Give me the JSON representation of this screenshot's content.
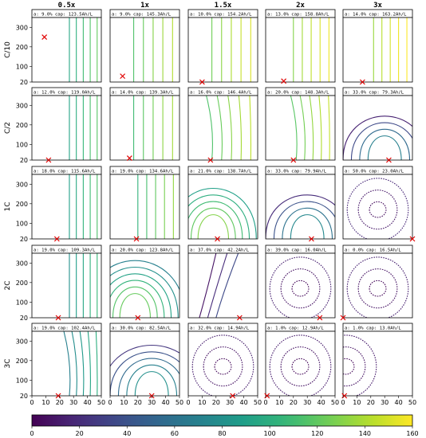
{
  "chart_data": {
    "type": "contour_grid",
    "col_titles": [
      "0.5x",
      "1x",
      "1.5x",
      "2x",
      "3x"
    ],
    "row_labels": [
      "C/10",
      "C/2",
      "1C",
      "2C",
      "3C"
    ],
    "x_ticks": [
      "0",
      "10",
      "20",
      "30",
      "40",
      "50"
    ],
    "x_range": [
      0,
      50
    ],
    "y_ticks": [
      "20",
      "100",
      "200",
      "300"
    ],
    "y_range": [
      20,
      350
    ],
    "colorbar": {
      "ticks": [
        "0",
        "20",
        "40",
        "60",
        "80",
        "100",
        "120",
        "140",
        "160"
      ],
      "range": [
        0,
        160
      ],
      "colormap": "viridis"
    },
    "panels": [
      [
        {
          "label": "a: 9.0%   cap: 123.5Ah/L",
          "optimum": [
            9,
            250
          ],
          "pattern": "vertical",
          "values": [
            95,
            102,
            110,
            116,
            121
          ],
          "x_start": 25
        },
        {
          "label": "a: 9.0%   cap: 145.3Ah/L",
          "optimum": [
            9,
            50
          ],
          "pattern": "vertical",
          "values": [
            115,
            122,
            130,
            136,
            141
          ],
          "x_start": 15
        },
        {
          "label": "a: 10.0%   cap: 154.2Ah/L",
          "optimum": [
            10,
            20
          ],
          "pattern": "vertical",
          "values": [
            125,
            132,
            140,
            147,
            151
          ],
          "x_start": 15
        },
        {
          "label": "a: 13.0%   cap: 158.8Ah/L",
          "optimum": [
            13,
            25
          ],
          "pattern": "vertical",
          "values": [
            130,
            138,
            145,
            151,
            156
          ],
          "x_start": 18
        },
        {
          "label": "a: 14.0%   cap: 163.2Ah/L",
          "optimum": [
            14,
            20
          ],
          "pattern": "vertical",
          "values": [
            135,
            143,
            150,
            156,
            161
          ],
          "x_start": 20
        }
      ],
      [
        {
          "label": "a: 12.0%   cap: 119.0Ah/L",
          "optimum": [
            12,
            20
          ],
          "pattern": "vertical",
          "values": [
            92,
            100,
            107,
            113,
            117
          ],
          "x_start": 25
        },
        {
          "label": "a: 14.0%   cap: 139.3Ah/L",
          "optimum": [
            14,
            30
          ],
          "pattern": "vertical",
          "values": [
            110,
            118,
            125,
            132,
            137
          ],
          "x_start": 15
        },
        {
          "label": "a: 16.0%   cap: 146.4Ah/L",
          "optimum": [
            16,
            20
          ],
          "pattern": "vertical_curved",
          "values": [
            115,
            123,
            131,
            138,
            144
          ],
          "x_start": 15
        },
        {
          "label": "a: 20.0%   cap: 148.3Ah/L",
          "optimum": [
            20,
            20
          ],
          "pattern": "vertical_curved",
          "values": [
            118,
            126,
            134,
            141,
            146
          ],
          "x_start": 20
        },
        {
          "label": "a: 33.0%   cap: 79.3Ah/L",
          "optimum": [
            33,
            20
          ],
          "pattern": "dome",
          "values": [
            15,
            35,
            55,
            70
          ],
          "x_start": 0
        }
      ],
      [
        {
          "label": "a: 18.0%   cap: 115.6Ah/L",
          "optimum": [
            18,
            20
          ],
          "pattern": "vertical",
          "values": [
            90,
            97,
            104,
            110,
            114
          ],
          "x_start": 25
        },
        {
          "label": "a: 19.0%   cap: 134.6Ah/L",
          "optimum": [
            19,
            20
          ],
          "pattern": "vertical",
          "values": [
            104,
            112,
            120,
            127,
            133
          ],
          "x_start": 18
        },
        {
          "label": "a: 21.0%   cap: 138.7Ah/L",
          "optimum": [
            21,
            20
          ],
          "pattern": "arches",
          "values": [
            90,
            100,
            110,
            120,
            130
          ],
          "x_start": 0
        },
        {
          "label": "a: 33.0%   cap: 79.9Ah/L",
          "optimum": [
            33,
            20
          ],
          "pattern": "dome",
          "values": [
            20,
            40,
            60,
            75
          ],
          "x_start": 0
        },
        {
          "label": "a: 50.0%   cap: 23.0Ah/L",
          "optimum": [
            50,
            20
          ],
          "pattern": "dotted",
          "values": [
            5,
            10,
            18
          ],
          "x_start": 0
        }
      ],
      [
        {
          "label": "a: 19.0%   cap: 109.3Ah/L",
          "optimum": [
            19,
            20
          ],
          "pattern": "vertical",
          "values": [
            80,
            88,
            95,
            102,
            107
          ],
          "x_start": 25
        },
        {
          "label": "a: 20.0%   cap: 123.8Ah/L",
          "optimum": [
            20,
            20
          ],
          "pattern": "arches",
          "values": [
            70,
            80,
            92,
            104,
            116,
            122
          ],
          "x_start": 0
        },
        {
          "label": "a: 37.0%   cap: 42.2Ah/L",
          "optimum": [
            37,
            20
          ],
          "pattern": "dome_open",
          "values": [
            8,
            20,
            35
          ],
          "x_start": 0
        },
        {
          "label": "a: 39.0%   cap: 16.0Ah/L",
          "optimum": [
            39,
            20
          ],
          "pattern": "dotted",
          "values": [
            3,
            8,
            14
          ],
          "x_start": 0
        },
        {
          "label": "a: 0.0%   cap: 16.5Ah/L",
          "optimum": [
            0,
            20
          ],
          "pattern": "dotted",
          "values": [
            3,
            8,
            14
          ],
          "x_start": 0
        }
      ],
      [
        {
          "label": "a: 19.0%   cap: 102.4Ah/L",
          "optimum": [
            19,
            20
          ],
          "pattern": "vertical_curved",
          "values": [
            70,
            78,
            86,
            94,
            100
          ],
          "x_start": 25
        },
        {
          "label": "a: 30.0%   cap: 82.5Ah/L",
          "optimum": [
            30,
            20
          ],
          "pattern": "dome",
          "values": [
            25,
            40,
            55,
            70,
            80
          ],
          "x_start": 0
        },
        {
          "label": "a: 32.0%   cap: 14.9Ah/L",
          "optimum": [
            32,
            20
          ],
          "pattern": "dotted",
          "values": [
            3,
            8,
            13
          ],
          "x_start": 0
        },
        {
          "label": "a: 1.0%   cap: 12.9Ah/L",
          "optimum": [
            1,
            20
          ],
          "pattern": "dotted",
          "values": [
            3,
            8,
            12
          ],
          "x_start": 0
        },
        {
          "label": "a: 1.0%   cap: 13.0Ah/L",
          "optimum": [
            1,
            20
          ],
          "pattern": "dotted_edge",
          "values": [
            3,
            8,
            12
          ],
          "x_start": 0
        }
      ]
    ]
  }
}
